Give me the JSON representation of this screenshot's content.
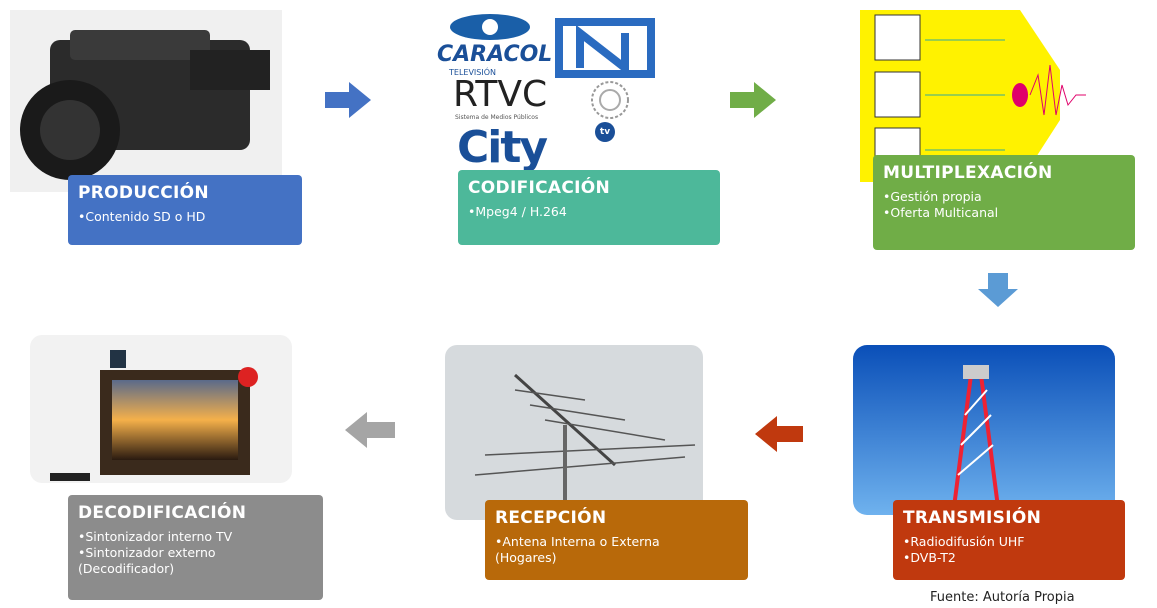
{
  "stages": [
    {
      "title": "PRODUCCIÓN",
      "bullets": [
        "•Contenido SD o HD"
      ]
    },
    {
      "title": "CODIFICACIÓN",
      "bullets": [
        "•Mpeg4 / H.264"
      ]
    },
    {
      "title": "MULTIPLEXACIÓN",
      "bullets": [
        "•Gestión propia",
        "•Oferta Multicanal"
      ]
    },
    {
      "title": "TRANSMISIÓN",
      "bullets": [
        "•Radiodifusión UHF",
        "•DVB-T2"
      ]
    },
    {
      "title": "RECEPCIÓN",
      "bullets": [
        "•Antena Interna o Externa (Hogares)"
      ]
    },
    {
      "title": "DECODIFICACIÓN",
      "bullets": [
        "•Sintonizador interno TV",
        "•Sintonizador externo (Decodificador)"
      ]
    }
  ],
  "logos": {
    "caracol": "CARACOL",
    "caracol_sub": "TELEVISIÓN",
    "rtvc": "RTVC",
    "rtvc_sub": "Sistema de Medios Públicos",
    "city": "City",
    "city_sup": "tv"
  },
  "source": "Fuente: Autoría Propia"
}
